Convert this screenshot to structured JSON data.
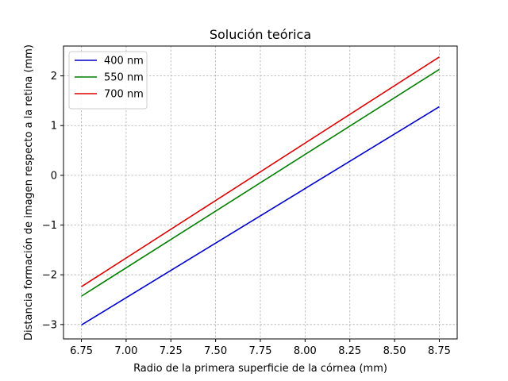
{
  "chart_data": {
    "type": "line",
    "title": "Solución teórica",
    "xlabel": "Radio de la primera superficie de la córnea (mm)",
    "ylabel": "Distancia formación de imagen respecto a la retina (mm)",
    "xlim": [
      6.65,
      8.85
    ],
    "ylim": [
      -3.29,
      2.6
    ],
    "xticks": [
      6.75,
      7.0,
      7.25,
      7.5,
      7.75,
      8.0,
      8.25,
      8.5,
      8.75
    ],
    "xtick_labels": [
      "6.75",
      "7.00",
      "7.25",
      "7.50",
      "7.75",
      "8.00",
      "8.25",
      "8.50",
      "8.75"
    ],
    "yticks": [
      -3,
      -2,
      -1,
      0,
      1,
      2
    ],
    "ytick_labels": [
      "−3",
      "−2",
      "−1",
      "0",
      "1",
      "2"
    ],
    "grid": true,
    "legend_position": "top-left",
    "series": [
      {
        "name": "400 nm",
        "color": "#0000cc",
        "x": [
          6.75,
          8.75
        ],
        "y": [
          -3.01,
          1.38
        ]
      },
      {
        "name": "550 nm",
        "color": "#007f00",
        "x": [
          6.75,
          8.75
        ],
        "y": [
          -2.43,
          2.13
        ]
      },
      {
        "name": "700 nm",
        "color": "#dd0000",
        "x": [
          6.75,
          8.75
        ],
        "y": [
          -2.24,
          2.38
        ]
      }
    ]
  }
}
